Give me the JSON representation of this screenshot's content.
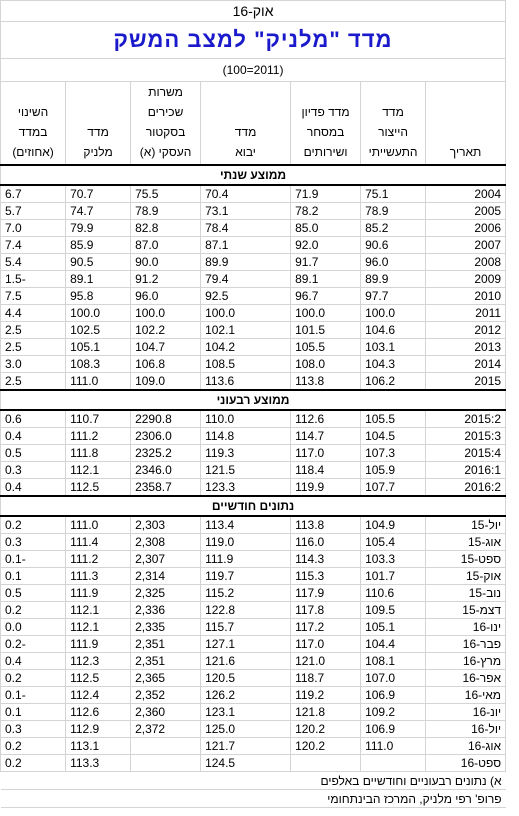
{
  "header": {
    "date": "אוק-16",
    "title": "מדד \"מלניק\" למצב המשק",
    "base": "(2011=100)"
  },
  "columns": [
    [
      "תאריך"
    ],
    [
      "מדד",
      "הייצור",
      "התעשייתי"
    ],
    [
      "מדד פדיון",
      "במסחר",
      "ושירותים"
    ],
    [
      "מדד",
      "יבוא"
    ],
    [
      "משרות",
      "שכירים",
      "בסקטור",
      "העסקי (א)"
    ],
    [
      "מדד",
      "מלניק"
    ],
    [
      "השינוי",
      "במדד",
      "(אחוזים)"
    ]
  ],
  "sections": [
    {
      "title": "ממוצע שנתי",
      "rows": [
        [
          "2004",
          "75.1",
          "71.9",
          "70.4",
          "75.5",
          "70.7",
          "6.7"
        ],
        [
          "2005",
          "78.9",
          "78.2",
          "73.1",
          "78.9",
          "74.7",
          "5.7"
        ],
        [
          "2006",
          "85.2",
          "85.0",
          "78.4",
          "82.8",
          "79.9",
          "7.0"
        ],
        [
          "2007",
          "90.6",
          "92.0",
          "87.1",
          "87.0",
          "85.9",
          "7.4"
        ],
        [
          "2008",
          "96.0",
          "91.7",
          "89.9",
          "90.0",
          "90.5",
          "5.4"
        ],
        [
          "2009",
          "89.9",
          "89.1",
          "79.4",
          "91.2",
          "89.1",
          "-1.5"
        ],
        [
          "2010",
          "97.7",
          "96.7",
          "92.5",
          "96.0",
          "95.8",
          "7.5"
        ],
        [
          "2011",
          "100.0",
          "100.0",
          "100.0",
          "100.0",
          "100.0",
          "4.4"
        ],
        [
          "2012",
          "104.6",
          "101.5",
          "102.1",
          "102.2",
          "102.5",
          "2.5"
        ],
        [
          "2013",
          "103.1",
          "105.5",
          "104.2",
          "104.7",
          "105.1",
          "2.5"
        ],
        [
          "2014",
          "104.3",
          "108.0",
          "108.5",
          "106.8",
          "108.3",
          "3.0"
        ],
        [
          "2015",
          "106.2",
          "113.8",
          "113.6",
          "109.0",
          "111.0",
          "2.5"
        ]
      ]
    },
    {
      "title": "ממוצע רבעוני",
      "rows": [
        [
          "2015:2",
          "105.5",
          "112.6",
          "110.0",
          "2290.8",
          "110.7",
          "0.6"
        ],
        [
          "2015:3",
          "104.5",
          "114.7",
          "114.8",
          "2306.0",
          "111.2",
          "0.4"
        ],
        [
          "2015:4",
          "107.3",
          "117.0",
          "119.3",
          "2325.2",
          "111.8",
          "0.5"
        ],
        [
          "2016:1",
          "105.9",
          "118.4",
          "121.5",
          "2346.0",
          "112.1",
          "0.3"
        ],
        [
          "2016:2",
          "107.7",
          "119.9",
          "123.3",
          "2358.7",
          "112.5",
          "0.4"
        ]
      ]
    },
    {
      "title": "נתונים חודשיים",
      "rows": [
        [
          "יול-15",
          "104.9",
          "113.8",
          "113.4",
          "2,303",
          "111.0",
          "0.2"
        ],
        [
          "אוג-15",
          "105.4",
          "116.0",
          "119.0",
          "2,308",
          "111.4",
          "0.3"
        ],
        [
          "ספט-15",
          "103.3",
          "114.3",
          "111.9",
          "2,307",
          "111.2",
          "-0.1"
        ],
        [
          "אוק-15",
          "101.7",
          "115.3",
          "119.7",
          "2,314",
          "111.3",
          "0.1"
        ],
        [
          "נוב-15",
          "110.6",
          "117.9",
          "115.2",
          "2,325",
          "111.9",
          "0.5"
        ],
        [
          "דצמ-15",
          "109.5",
          "117.8",
          "122.8",
          "2,336",
          "112.1",
          "0.2"
        ],
        [
          "ינו-16",
          "105.1",
          "117.2",
          "115.7",
          "2,335",
          "112.1",
          "0.0"
        ],
        [
          "פבר-16",
          "104.4",
          "117.0",
          "127.1",
          "2,351",
          "111.9",
          "-0.2"
        ],
        [
          "מרץ-16",
          "108.1",
          "121.0",
          "121.6",
          "2,351",
          "112.3",
          "0.4"
        ],
        [
          "אפר-16",
          "107.0",
          "118.7",
          "120.5",
          "2,365",
          "112.5",
          "0.2"
        ],
        [
          "מאי-16",
          "106.9",
          "119.2",
          "126.2",
          "2,352",
          "112.4",
          "-0.1"
        ],
        [
          "יונ-16",
          "109.2",
          "121.8",
          "123.1",
          "2,360",
          "112.6",
          "0.1"
        ],
        [
          "יול-16",
          "106.9",
          "120.2",
          "125.0",
          "2,372",
          "112.9",
          "0.3"
        ],
        [
          "אוג-16",
          "111.0",
          "120.2",
          "121.7",
          null,
          "113.1",
          "0.2"
        ],
        [
          "ספט-16",
          null,
          null,
          "124.5",
          null,
          "113.3",
          "0.2"
        ]
      ]
    }
  ],
  "footnotes": [
    "א) נתונים רבעוניים וחודשיים באלפים",
    "פרופ' רפי מלניק, המרכז הבינתחומי"
  ]
}
